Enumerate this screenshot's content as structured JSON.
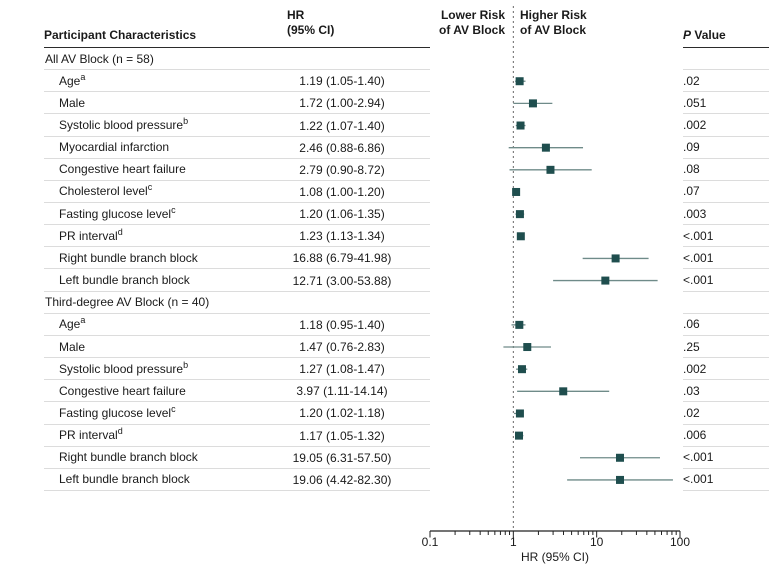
{
  "header": {
    "col_characteristics": "Participant Characteristics",
    "col_hr_line1": "HR",
    "col_hr_line2": "(95% CI)",
    "lower_risk_line1": "Lower Risk",
    "lower_risk_line2": "of AV Block",
    "higher_risk_line1": "Higher Risk",
    "higher_risk_line2": "of AV Block",
    "p_value_italic": "P",
    "p_value_rest": " Value"
  },
  "colors": {
    "marker": "#1f4e4e",
    "ci_line": "#6f8b89",
    "reference_line": "#666666",
    "axis": "#222222",
    "row_separator": "#dcdcdc",
    "header_rule": "#2b2b2b"
  },
  "chart_data": {
    "type": "forest",
    "xscale": "log",
    "xlim": [
      0.1,
      100
    ],
    "xticks": [
      0.1,
      1,
      10,
      100
    ],
    "xtick_labels": [
      "0.1",
      "1",
      "10",
      "100"
    ],
    "xlabel": "HR (95% CI)",
    "reference_value": 1,
    "legend": "squares are hazard ratio point estimates, horizontal lines are 95% CIs, dotted line at HR = 1",
    "groups": [
      {
        "label": "All AV Block (n = 58)",
        "rows": [
          {
            "label": "Age",
            "sup": "a",
            "hr": 1.19,
            "lo": 1.05,
            "hi": 1.4,
            "hr_text": "1.19 (1.05-1.40)",
            "p": ".02"
          },
          {
            "label": "Male",
            "sup": "",
            "hr": 1.72,
            "lo": 1.0,
            "hi": 2.94,
            "hr_text": "1.72 (1.00-2.94)",
            "p": ".051"
          },
          {
            "label": "Systolic blood pressure",
            "sup": "b",
            "hr": 1.22,
            "lo": 1.07,
            "hi": 1.4,
            "hr_text": "1.22 (1.07-1.40)",
            "p": ".002"
          },
          {
            "label": "Myocardial infarction",
            "sup": "",
            "hr": 2.46,
            "lo": 0.88,
            "hi": 6.86,
            "hr_text": "2.46 (0.88-6.86)",
            "p": ".09"
          },
          {
            "label": "Congestive heart failure",
            "sup": "",
            "hr": 2.79,
            "lo": 0.9,
            "hi": 8.72,
            "hr_text": "2.79 (0.90-8.72)",
            "p": ".08"
          },
          {
            "label": "Cholesterol level",
            "sup": "c",
            "hr": 1.08,
            "lo": 1.0,
            "hi": 1.2,
            "hr_text": "1.08 (1.00-1.20)",
            "p": ".07"
          },
          {
            "label": "Fasting glucose level",
            "sup": "c",
            "hr": 1.2,
            "lo": 1.06,
            "hi": 1.35,
            "hr_text": "1.20 (1.06-1.35)",
            "p": ".003"
          },
          {
            "label": "PR interval",
            "sup": "d",
            "hr": 1.23,
            "lo": 1.13,
            "hi": 1.34,
            "hr_text": "1.23 (1.13-1.34)",
            "p": "<.001"
          },
          {
            "label": "Right bundle branch block",
            "sup": "",
            "hr": 16.88,
            "lo": 6.79,
            "hi": 41.98,
            "hr_text": "16.88 (6.79-41.98)",
            "p": "<.001"
          },
          {
            "label": "Left bundle branch block",
            "sup": "",
            "hr": 12.71,
            "lo": 3.0,
            "hi": 53.88,
            "hr_text": "12.71 (3.00-53.88)",
            "p": "<.001"
          }
        ]
      },
      {
        "label": "Third-degree AV Block (n = 40)",
        "rows": [
          {
            "label": "Age",
            "sup": "a",
            "hr": 1.18,
            "lo": 0.95,
            "hi": 1.4,
            "hr_text": "1.18 (0.95-1.40)",
            "p": ".06"
          },
          {
            "label": "Male",
            "sup": "",
            "hr": 1.47,
            "lo": 0.76,
            "hi": 2.83,
            "hr_text": "1.47 (0.76-2.83)",
            "p": ".25"
          },
          {
            "label": "Systolic blood pressure",
            "sup": "b",
            "hr": 1.27,
            "lo": 1.08,
            "hi": 1.47,
            "hr_text": "1.27 (1.08-1.47)",
            "p": ".002"
          },
          {
            "label": "Congestive heart failure",
            "sup": "",
            "hr": 3.97,
            "lo": 1.11,
            "hi": 14.14,
            "hr_text": "3.97 (1.11-14.14)",
            "p": ".03"
          },
          {
            "label": "Fasting glucose level",
            "sup": "c",
            "hr": 1.2,
            "lo": 1.02,
            "hi": 1.18,
            "hr_text": "1.20 (1.02-1.18)",
            "p": ".02"
          },
          {
            "label": "PR interval",
            "sup": "d",
            "hr": 1.17,
            "lo": 1.05,
            "hi": 1.32,
            "hr_text": "1.17 (1.05-1.32)",
            "p": ".006"
          },
          {
            "label": "Right bundle branch block",
            "sup": "",
            "hr": 19.05,
            "lo": 6.31,
            "hi": 57.5,
            "hr_text": "19.05 (6.31-57.50)",
            "p": "<.001"
          },
          {
            "label": "Left bundle branch block",
            "sup": "",
            "hr": 19.06,
            "lo": 4.42,
            "hi": 82.3,
            "hr_text": "19.06 (4.42-82.30)",
            "p": "<.001"
          }
        ]
      }
    ]
  }
}
